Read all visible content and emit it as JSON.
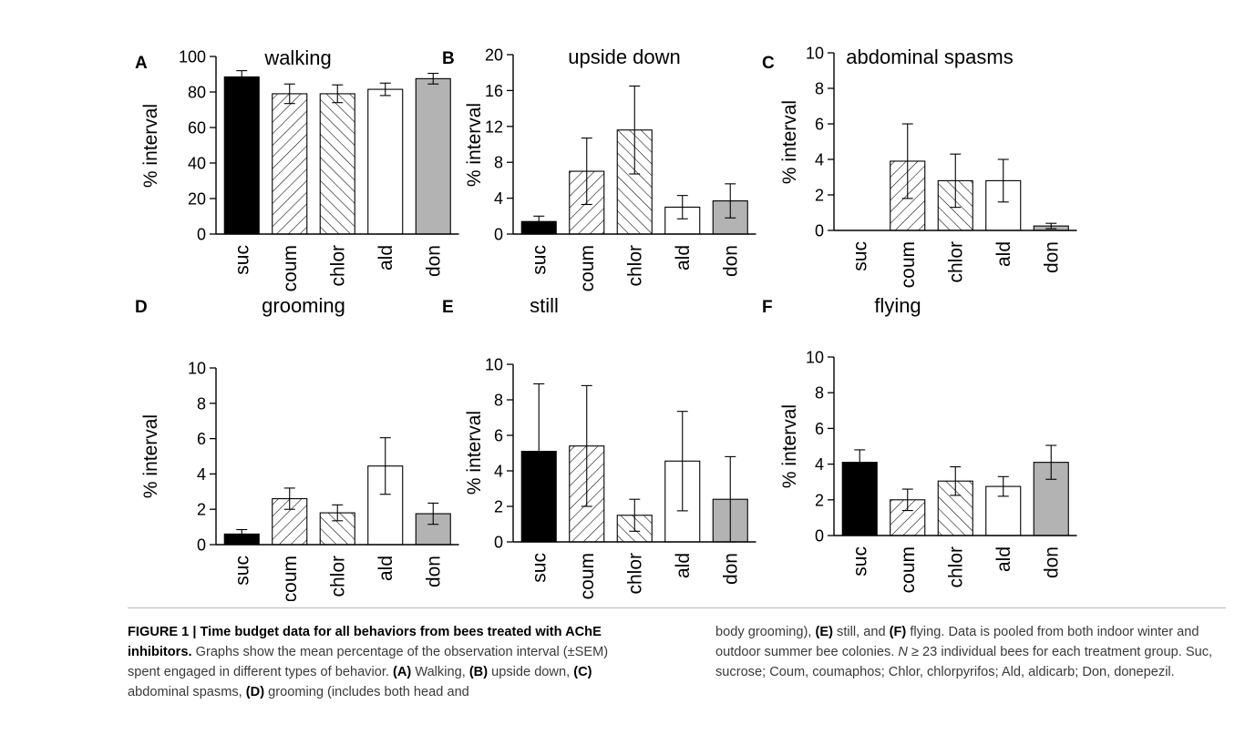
{
  "chart_data": [
    {
      "panel": "A",
      "title": "walking",
      "type": "bar",
      "ylabel": "% interval",
      "ylim": [
        0,
        100
      ],
      "yticks": [
        "0",
        "20",
        "40",
        "60",
        "80",
        "100"
      ],
      "categories": [
        "suc",
        "coum",
        "chlor",
        "ald",
        "don"
      ],
      "values": [
        88.5,
        79,
        79,
        81.5,
        87.5
      ],
      "errors": [
        3.5,
        5.5,
        5,
        3.5,
        3
      ]
    },
    {
      "panel": "B",
      "title": "upside down",
      "type": "bar",
      "ylabel": "% interval",
      "ylim": [
        0,
        20
      ],
      "yticks": [
        "0",
        "4",
        "8",
        "12",
        "16",
        "20"
      ],
      "categories": [
        "suc",
        "coum",
        "chlor",
        "ald",
        "don"
      ],
      "values": [
        1.4,
        7.0,
        11.6,
        3.0,
        3.7
      ],
      "errors": [
        0.6,
        3.7,
        4.9,
        1.3,
        1.9
      ]
    },
    {
      "panel": "C",
      "title": "abdominal spasms",
      "type": "bar",
      "ylabel": "% interval",
      "ylim": [
        0,
        10
      ],
      "yticks": [
        "0",
        "2",
        "4",
        "6",
        "8",
        "10"
      ],
      "categories": [
        "suc",
        "coum",
        "chlor",
        "ald",
        "don"
      ],
      "values": [
        0,
        3.9,
        2.8,
        2.8,
        0.25
      ],
      "errors": [
        0,
        2.1,
        1.5,
        1.2,
        0.15
      ]
    },
    {
      "panel": "D",
      "title": "grooming",
      "type": "bar",
      "ylabel": "% interval",
      "ylim": [
        0,
        10
      ],
      "yticks": [
        "0",
        "2",
        "4",
        "6",
        "8",
        "10"
      ],
      "categories": [
        "suc",
        "coum",
        "chlor",
        "ald",
        "don"
      ],
      "values": [
        0.6,
        2.6,
        1.8,
        4.45,
        1.75
      ],
      "errors": [
        0.25,
        0.6,
        0.45,
        1.6,
        0.6
      ]
    },
    {
      "panel": "E",
      "title": "still",
      "type": "bar",
      "ylabel": "% interval",
      "ylim": [
        0,
        10
      ],
      "yticks": [
        "0",
        "2",
        "4",
        "6",
        "8",
        "10"
      ],
      "categories": [
        "suc",
        "coum",
        "chlor",
        "ald",
        "don"
      ],
      "values": [
        5.1,
        5.4,
        1.5,
        4.55,
        2.4
      ],
      "errors": [
        3.8,
        3.4,
        0.9,
        2.8,
        2.4
      ]
    },
    {
      "panel": "F",
      "title": "flying",
      "type": "bar",
      "ylabel": "% interval",
      "ylim": [
        0,
        10
      ],
      "yticks": [
        "0",
        "2",
        "4",
        "6",
        "8",
        "10"
      ],
      "categories": [
        "suc",
        "coum",
        "chlor",
        "ald",
        "don"
      ],
      "values": [
        4.1,
        2.0,
        3.05,
        2.75,
        4.1
      ],
      "errors": [
        0.7,
        0.6,
        0.8,
        0.55,
        0.95
      ]
    }
  ],
  "bar_styles": [
    {
      "fill": "#000000",
      "pattern": "none"
    },
    {
      "fill": "#ffffff",
      "pattern": "forward-hatch"
    },
    {
      "fill": "#ffffff",
      "pattern": "back-hatch"
    },
    {
      "fill": "#ffffff",
      "pattern": "none"
    },
    {
      "fill": "#b3b3b3",
      "pattern": "none"
    }
  ],
  "caption": {
    "lead": "FIGURE 1 | Time budget data for all behaviors from bees treated with AChE inhibitors.",
    "p1": " Graphs show the mean percentage of the observation interval (±SEM) spent engaged in different types of behavior. ",
    "a": "(A)",
    "a_text": " Walking, ",
    "b": "(B)",
    "b_text": " upside down, ",
    "c": "(C)",
    "c_text": " abdominal spasms, ",
    "d": "(D)",
    "d_text": " grooming (includes both head and",
    "col2_start": "body grooming), ",
    "e": "(E)",
    "e_text": " still, and ",
    "f": "(F)",
    "f_text": " flying. Data is pooled from both indoor winter and outdoor summer bee colonies. ",
    "n": "N",
    "n_text": " ≥ 23 individual bees for each treatment group. Suc, sucrose; Coum, coumaphos; Chlor, chlorpyrifos; Ald, aldicarb; Don, donepezil."
  }
}
